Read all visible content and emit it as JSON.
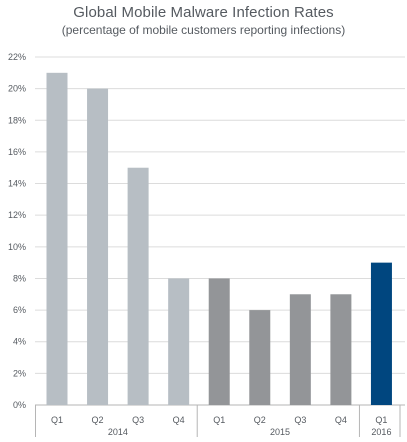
{
  "chart_data": {
    "type": "bar",
    "title": "Global Mobile Malware Infection Rates",
    "subtitle": "(percentage of mobile customers reporting infections)",
    "xlabel": "",
    "ylabel": "",
    "ylim": [
      0,
      22
    ],
    "yticks": [
      "0%",
      "2%",
      "4%",
      "6%",
      "8%",
      "10%",
      "12%",
      "14%",
      "16%",
      "18%",
      "20%",
      "22%"
    ],
    "ytick_values": [
      0,
      2,
      4,
      6,
      8,
      10,
      12,
      14,
      16,
      18,
      20,
      22
    ],
    "grid": true,
    "categories": [
      "Q1",
      "Q2",
      "Q3",
      "Q4",
      "Q1",
      "Q2",
      "Q3",
      "Q4",
      "Q1"
    ],
    "groups": [
      {
        "label": "2014",
        "count": 4,
        "color": "#b7bec4"
      },
      {
        "label": "2015",
        "count": 4,
        "color": "#939598"
      },
      {
        "label": "2016",
        "count": 1,
        "color": "#00467f"
      }
    ],
    "values": [
      21,
      20,
      15,
      8,
      8,
      6,
      7,
      7,
      9
    ]
  }
}
